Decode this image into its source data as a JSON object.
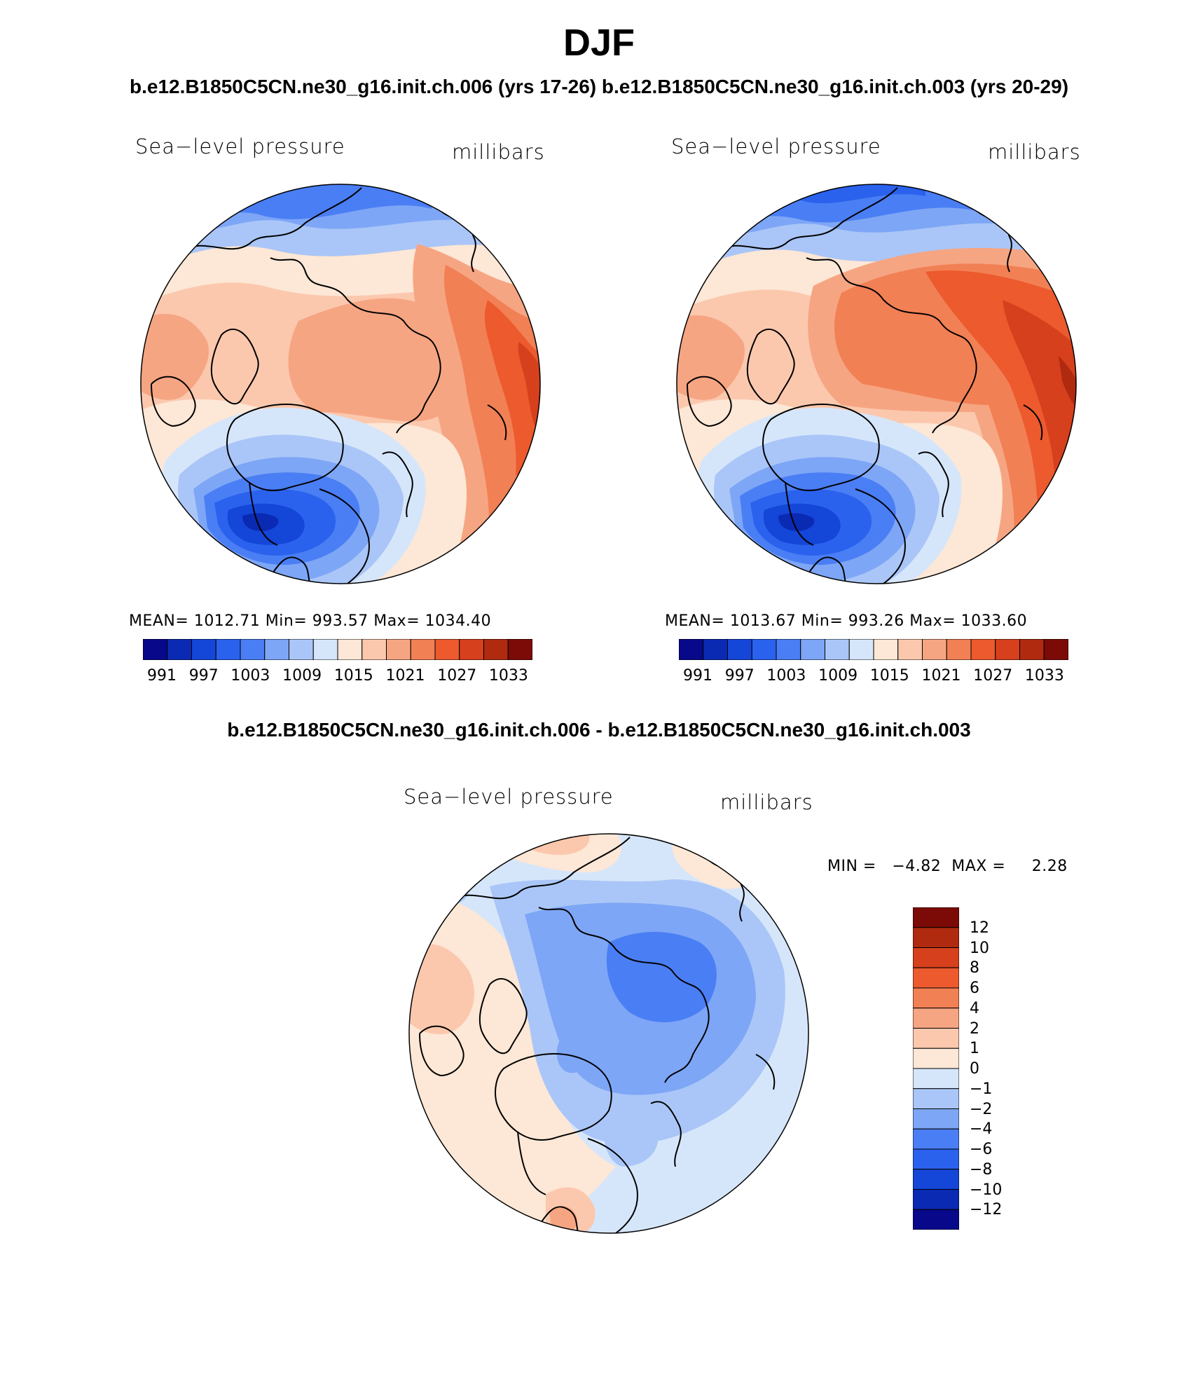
{
  "figure": {
    "season": "DJF",
    "case_a": "b.e12.B1850C5CN.ne30_g16.init.ch.006 (yrs 17-26)",
    "case_b": "b.e12.B1850C5CN.ne30_g16.init.ch.003 (yrs 20-29)",
    "diff_title": "b.e12.B1850C5CN.ne30_g16.init.ch.006 - b.e12.B1850C5CN.ne30_g16.init.ch.003"
  },
  "panels": [
    {
      "variable": "Sea−level pressure",
      "units": "millibars",
      "stats": "MEAN= 1012.71   Min= 993.57   Max= 1034.40",
      "ticks": [
        "991",
        "997",
        "1003",
        "1009",
        "1015",
        "1021",
        "1027",
        "1033"
      ]
    },
    {
      "variable": "Sea−level pressure",
      "units": "millibars",
      "stats": "MEAN= 1013.67   Min= 993.26   Max= 1033.60",
      "ticks": [
        "991",
        "997",
        "1003",
        "1009",
        "1015",
        "1021",
        "1027",
        "1033"
      ]
    },
    {
      "variable": "Sea−level pressure",
      "units": "millibars",
      "stats": "MIN =   −4.82  MAX =     2.28",
      "ticks": [
        "12",
        "10",
        "8",
        "6",
        "4",
        "2",
        "1",
        "0",
        "−1",
        "−2",
        "−4",
        "−6",
        "−8",
        "−10",
        "−12"
      ]
    }
  ],
  "colors": {
    "abs_scale": [
      "#08088a",
      "#0a2ab4",
      "#1446d8",
      "#2a62ee",
      "#4a7ef4",
      "#7ea6f6",
      "#aac6f8",
      "#d6e6fa",
      "#fde7d6",
      "#fbc8ae",
      "#f6a582",
      "#f28055",
      "#ec5a2e",
      "#d6401c",
      "#b02a10",
      "#7c0a06"
    ],
    "diff_scale": [
      "#7c0a06",
      "#b02a10",
      "#d6401c",
      "#ec5a2e",
      "#f28055",
      "#f6a582",
      "#fbc8ae",
      "#fde7d6",
      "#d6e6fa",
      "#aac6f8",
      "#7ea6f6",
      "#4a7ef4",
      "#2a62ee",
      "#1446d8",
      "#0a2ab4",
      "#08088a"
    ]
  }
}
